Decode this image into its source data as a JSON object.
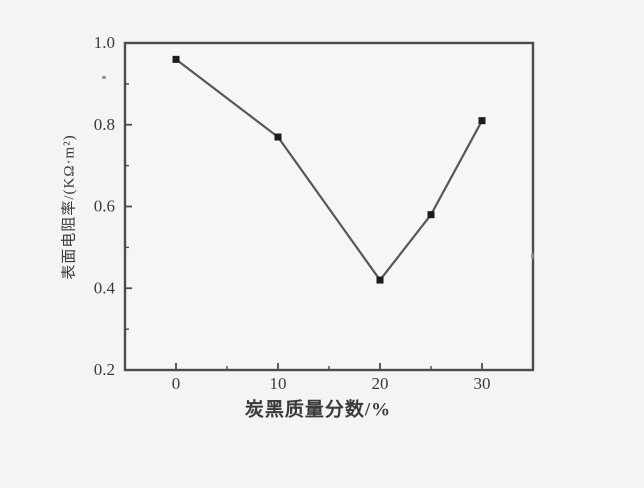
{
  "figure": {
    "background": "#f4f4f6",
    "plot_background": "#f6f6f8",
    "border_color": "#4c4c50",
    "line_color": "#57575b",
    "marker_color": "#1c1c1e",
    "text_color": "#3a3a3e"
  },
  "chart_data": {
    "type": "line",
    "title": "",
    "xlabel": "炭黑质量分数/%",
    "ylabel": "表面电阻率/(KΩ·m²)",
    "x": [
      0,
      10,
      20,
      25,
      30
    ],
    "y": [
      0.96,
      0.77,
      0.42,
      0.58,
      0.81
    ],
    "series": [
      {
        "name": "表面电阻率",
        "x": [
          0,
          10,
          20,
          25,
          30
        ],
        "values": [
          0.96,
          0.77,
          0.42,
          0.58,
          0.81
        ]
      }
    ],
    "xlim": [
      -5,
      35
    ],
    "ylim": [
      0.2,
      1.0
    ],
    "x_major_ticks": [
      0,
      10,
      20,
      30
    ],
    "x_minor_ticks": [
      5,
      15,
      25
    ],
    "y_major_ticks": [
      0.2,
      0.4,
      0.6,
      0.8,
      1.0
    ],
    "y_minor_ticks": [
      0.3,
      0.5,
      0.7,
      0.9
    ],
    "x_tick_labels": [
      "0",
      "10",
      "20",
      "30"
    ],
    "y_tick_labels": [
      "0.2",
      "0.4",
      "0.6",
      "0.8",
      "1.0"
    ],
    "grid": false,
    "legend_position": "none",
    "marker": "square"
  }
}
